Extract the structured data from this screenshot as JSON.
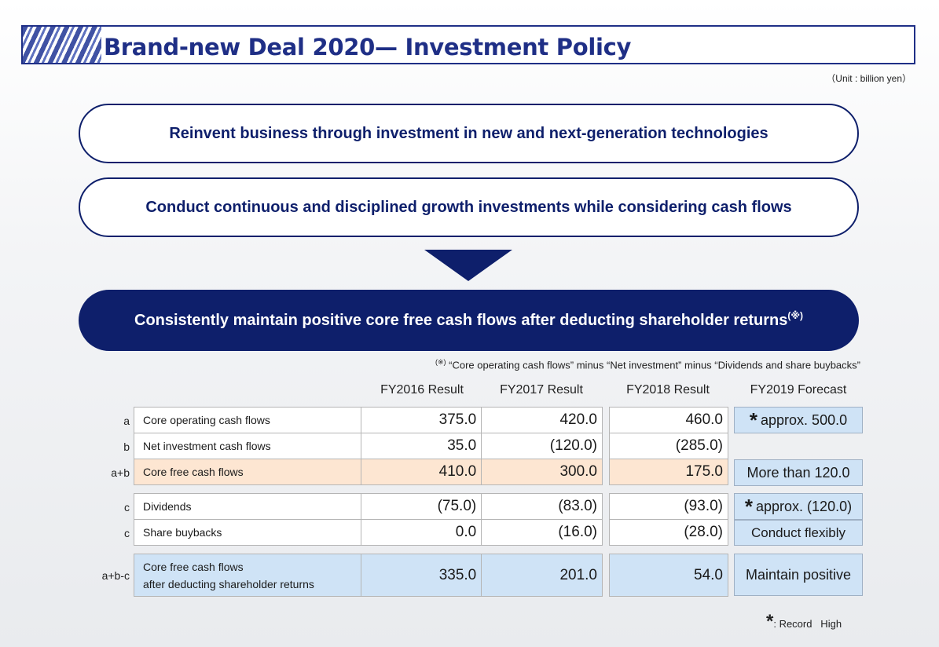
{
  "title": "Brand-new Deal 2020— Investment Policy",
  "unit": "（Unit : billion yen）",
  "policy1": "Reinvent business through investment in new and next-generation technologies",
  "policy2": "Conduct continuous and disciplined growth investments while considering cash flows",
  "goal": "Consistently maintain positive core free cash flows after deducting shareholder returns",
  "goal_mark": "(※)",
  "footnote_mark": "(※)",
  "footnote": " “Core operating cash flows” minus “Net investment” minus  “Dividends and share buybacks”",
  "columns": [
    "FY2016 Result",
    "FY2017 Result",
    "FY2018 Result",
    "FY2019 Forecast"
  ],
  "rows": [
    {
      "key": "a",
      "label": "Core operating cash flows",
      "fy2016": "375.0",
      "fy2017": "420.0",
      "fy2018": "460.0"
    },
    {
      "key": "b",
      "label": "Net investment cash flows",
      "fy2016": "35.0",
      "fy2017": "(120.0)",
      "fy2018": "(285.0)"
    },
    {
      "key": "a+b",
      "label": "Core free cash flows",
      "fy2016": "410.0",
      "fy2017": "300.0",
      "fy2018": "175.0"
    },
    {
      "key": "c",
      "label": "Dividends",
      "fy2016": "(75.0)",
      "fy2017": "(83.0)",
      "fy2018": "(93.0)"
    },
    {
      "key": "c",
      "label": "Share buybacks",
      "fy2016": "0.0",
      "fy2017": "(16.0)",
      "fy2018": "(28.0)"
    },
    {
      "key": "a+b-c",
      "label_line1": "Core free cash flows",
      "label_line2": "after deducting shareholder returns",
      "fy2016": "335.0",
      "fy2017": "201.0",
      "fy2018": "54.0"
    }
  ],
  "forecast": {
    "core_operating": "approx. 500.0",
    "core_free": "More than 120.0",
    "dividends": "approx. (120.0)",
    "buybacks": "Conduct flexibly",
    "after_returns": "Maintain positive"
  },
  "record_mark": "*",
  "legend_text": ": Record   High"
}
